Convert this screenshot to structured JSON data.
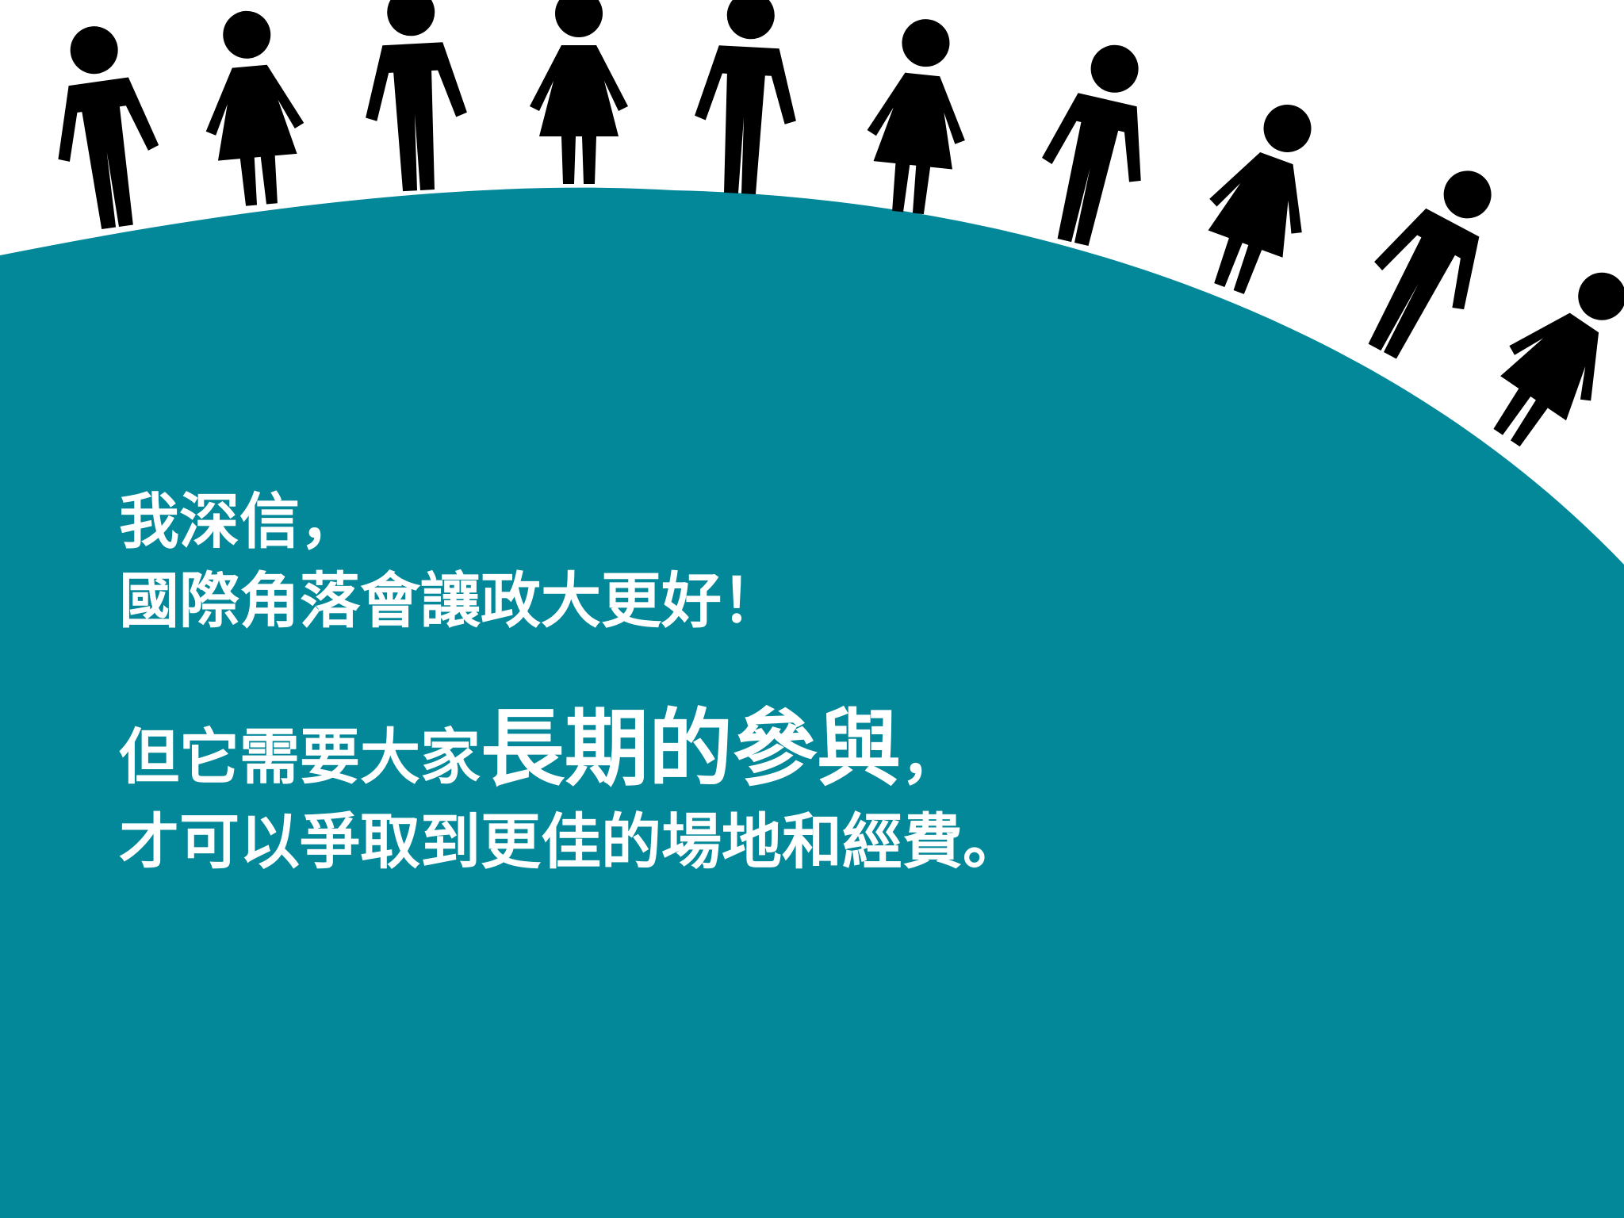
{
  "colors": {
    "background": "#ffffff",
    "hill": "#03889a",
    "figure": "#000000",
    "text": "#ffffff"
  },
  "figures": [
    "man",
    "woman",
    "man",
    "woman",
    "man",
    "woman",
    "man",
    "woman",
    "man",
    "woman"
  ],
  "message": {
    "line1": "我深信，",
    "line2": "國際角落會讓政大更好！",
    "line3_before": "但它需要大家",
    "line3_emphasis": "長期的參與",
    "line3_after": "，",
    "line4": "才可以爭取到更佳的場地和經費。"
  }
}
